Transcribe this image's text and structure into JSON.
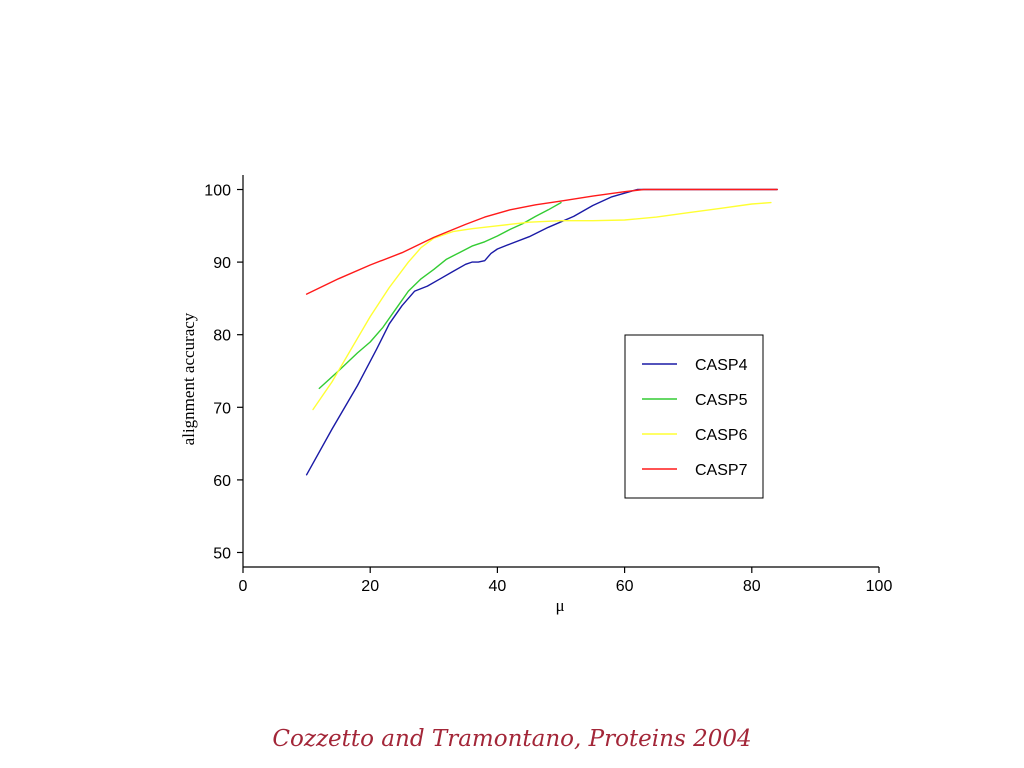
{
  "caption": "Cozzetto and Tramontano, Proteins 2004",
  "chart_data": {
    "type": "line",
    "title": "",
    "xlabel": "μ",
    "ylabel": "alignment accuracy",
    "xlim": [
      0,
      100
    ],
    "ylim": [
      48,
      102
    ],
    "x_ticks": [
      0,
      20,
      40,
      60,
      80,
      100
    ],
    "y_ticks": [
      50,
      60,
      70,
      80,
      90,
      100
    ],
    "grid": false,
    "legend_position": "right",
    "series": [
      {
        "name": "CASP4",
        "color": "#1a1aa6",
        "x": [
          10,
          14,
          18,
          21,
          23,
          25,
          27,
          29,
          31,
          33,
          35,
          36,
          37,
          38,
          39,
          40,
          42,
          45,
          48,
          52,
          55,
          58,
          62,
          64,
          67,
          70,
          80,
          84
        ],
        "y": [
          60.7,
          67,
          73,
          78,
          81.5,
          84,
          86,
          86.7,
          87.7,
          88.7,
          89.7,
          90,
          90,
          90.2,
          91.2,
          91.8,
          92.5,
          93.5,
          94.8,
          96.3,
          97.8,
          99,
          100,
          100,
          100,
          100,
          100,
          100
        ]
      },
      {
        "name": "CASP5",
        "color": "#33cc33",
        "x": [
          12,
          15,
          18,
          20,
          22,
          24,
          26,
          28,
          30,
          32,
          34,
          36,
          38,
          40,
          42,
          44,
          46,
          48,
          50
        ],
        "y": [
          72.6,
          75,
          77.5,
          79,
          81,
          83.5,
          86,
          87.7,
          89,
          90.4,
          91.3,
          92.2,
          92.8,
          93.6,
          94.5,
          95.3,
          96.3,
          97.2,
          98.2
        ]
      },
      {
        "name": "CASP6",
        "color": "#ffff33",
        "x": [
          11,
          14,
          17,
          20,
          23,
          26,
          28,
          30,
          33,
          36,
          40,
          45,
          50,
          55,
          60,
          65,
          70,
          75,
          80,
          83
        ],
        "y": [
          69.7,
          73.5,
          78,
          82.5,
          86.5,
          90,
          92,
          93.3,
          94.2,
          94.6,
          95,
          95.5,
          95.7,
          95.7,
          95.8,
          96.2,
          96.8,
          97.4,
          98,
          98.2
        ]
      },
      {
        "name": "CASP7",
        "color": "#ff1a1a",
        "x": [
          10,
          15,
          20,
          25,
          30,
          35,
          38,
          42,
          46,
          50,
          55,
          60,
          63,
          65,
          70,
          75,
          80,
          84
        ],
        "y": [
          85.6,
          87.7,
          89.6,
          91.3,
          93.4,
          95.2,
          96.2,
          97.2,
          97.9,
          98.4,
          99.1,
          99.7,
          100,
          100,
          100,
          100,
          100,
          100
        ]
      }
    ]
  }
}
